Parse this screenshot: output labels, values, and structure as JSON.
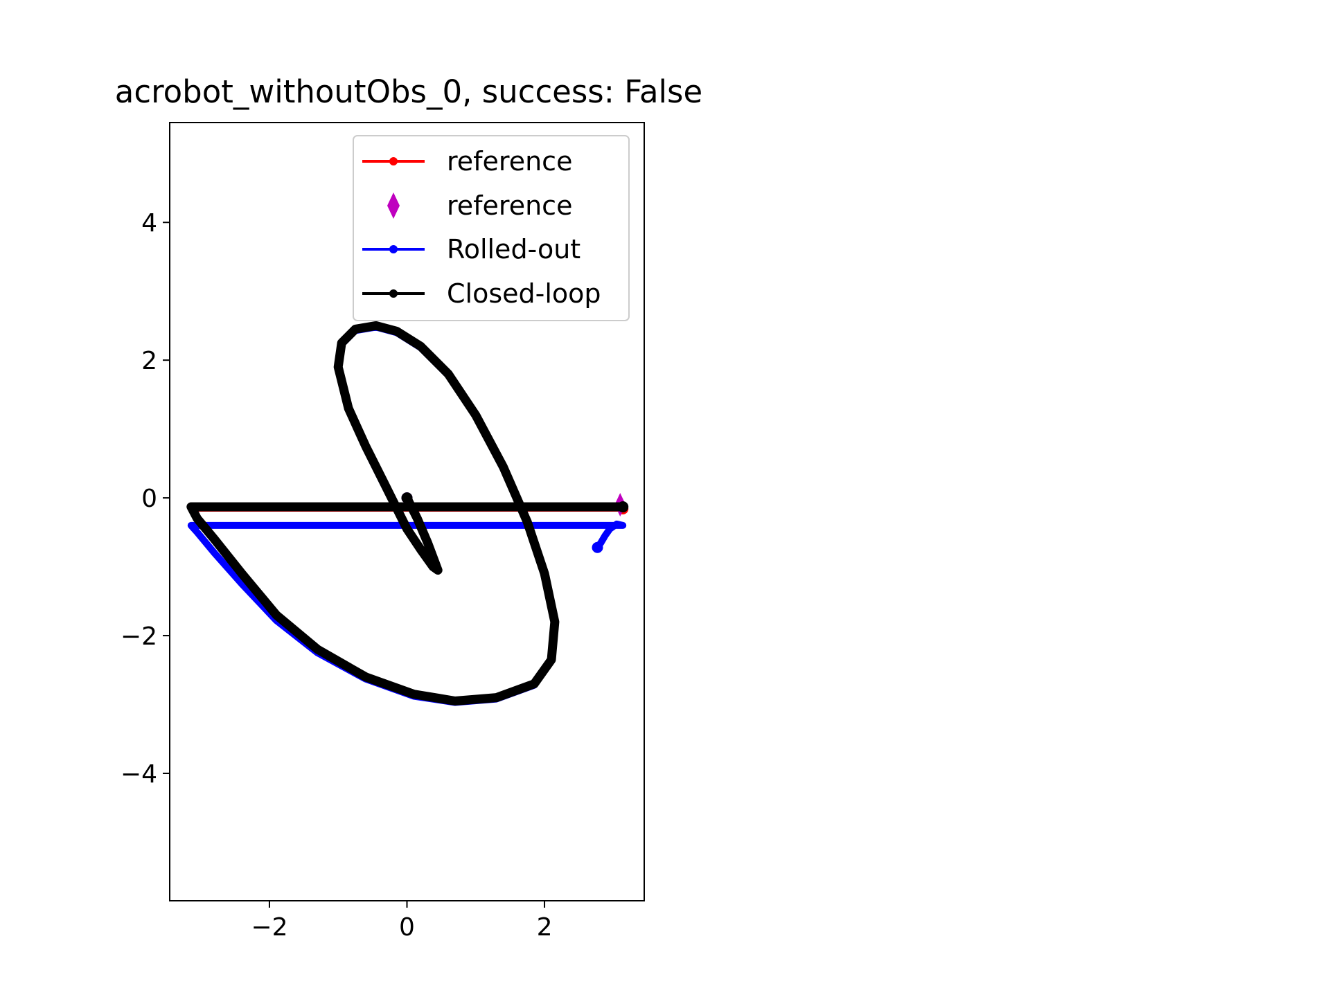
{
  "chart_data": {
    "type": "line",
    "title": "acrobot_withoutObs_0, success: False",
    "xlabel": "",
    "ylabel": "",
    "xlim": [
      -3.45,
      3.45
    ],
    "ylim": [
      -5.85,
      5.45
    ],
    "xticks": [
      -2,
      0,
      2
    ],
    "yticks": [
      -4,
      -2,
      0,
      2,
      4
    ],
    "xtick_labels": [
      "−2",
      "0",
      "2"
    ],
    "ytick_labels": [
      "−4",
      "−2",
      "0",
      "2",
      "4"
    ],
    "grid": false,
    "legend_position": "upper right",
    "series": [
      {
        "name": "reference",
        "kind": "line",
        "color": "#ff0000",
        "points": [
          [
            0.0,
            0.0
          ],
          [
            0.15,
            -0.3
          ],
          [
            0.3,
            -0.65
          ],
          [
            0.45,
            -1.05
          ],
          [
            0.38,
            -1.0
          ],
          [
            0.2,
            -0.75
          ],
          [
            0.0,
            -0.45
          ],
          [
            -0.15,
            -0.15
          ],
          [
            -0.35,
            0.25
          ],
          [
            -0.6,
            0.75
          ],
          [
            -0.85,
            1.3
          ],
          [
            -1.0,
            1.9
          ],
          [
            -0.95,
            2.25
          ],
          [
            -0.75,
            2.45
          ],
          [
            -0.45,
            2.5
          ],
          [
            -0.15,
            2.42
          ],
          [
            0.2,
            2.2
          ],
          [
            0.6,
            1.8
          ],
          [
            1.0,
            1.2
          ],
          [
            1.4,
            0.45
          ],
          [
            1.75,
            -0.35
          ],
          [
            2.0,
            -1.1
          ],
          [
            2.15,
            -1.8
          ],
          [
            2.1,
            -2.35
          ],
          [
            1.85,
            -2.7
          ],
          [
            1.3,
            -2.9
          ],
          [
            0.7,
            -2.95
          ],
          [
            0.1,
            -2.85
          ],
          [
            -0.6,
            -2.6
          ],
          [
            -1.3,
            -2.2
          ],
          [
            -1.9,
            -1.7
          ],
          [
            -2.4,
            -1.1
          ],
          [
            -2.8,
            -0.6
          ],
          [
            -3.05,
            -0.3
          ],
          [
            -3.14,
            -0.16
          ],
          [
            3.14,
            -0.16
          ]
        ]
      },
      {
        "name": "reference",
        "kind": "marker",
        "marker": "diamond",
        "color": "#bf00bf",
        "points": [
          [
            3.1,
            -0.1
          ]
        ]
      },
      {
        "name": "Rolled-out",
        "kind": "line",
        "color": "#0000ff",
        "points": [
          [
            0.0,
            0.0
          ],
          [
            0.15,
            -0.3
          ],
          [
            0.3,
            -0.65
          ],
          [
            0.45,
            -1.05
          ],
          [
            0.38,
            -1.0
          ],
          [
            0.2,
            -0.75
          ],
          [
            0.0,
            -0.45
          ],
          [
            -0.15,
            -0.17
          ],
          [
            -0.35,
            0.22
          ],
          [
            -0.6,
            0.72
          ],
          [
            -0.85,
            1.28
          ],
          [
            -1.0,
            1.88
          ],
          [
            -0.95,
            2.23
          ],
          [
            -0.75,
            2.43
          ],
          [
            -0.45,
            2.48
          ],
          [
            -0.15,
            2.4
          ],
          [
            0.2,
            2.18
          ],
          [
            0.6,
            1.78
          ],
          [
            1.0,
            1.18
          ],
          [
            1.4,
            0.42
          ],
          [
            1.75,
            -0.38
          ],
          [
            2.0,
            -1.12
          ],
          [
            2.15,
            -1.82
          ],
          [
            2.1,
            -2.37
          ],
          [
            1.85,
            -2.72
          ],
          [
            1.3,
            -2.92
          ],
          [
            0.7,
            -2.97
          ],
          [
            0.1,
            -2.88
          ],
          [
            -0.6,
            -2.63
          ],
          [
            -1.3,
            -2.25
          ],
          [
            -1.9,
            -1.78
          ],
          [
            -2.4,
            -1.25
          ],
          [
            -2.8,
            -0.8
          ],
          [
            -3.05,
            -0.5
          ],
          [
            -3.14,
            -0.4
          ],
          [
            3.14,
            -0.4
          ],
          [
            3.05,
            -0.38
          ],
          [
            2.95,
            -0.45
          ],
          [
            2.88,
            -0.55
          ],
          [
            2.82,
            -0.65
          ],
          [
            2.77,
            -0.72
          ]
        ]
      },
      {
        "name": "Closed-loop",
        "kind": "line",
        "color": "#000000",
        "points": [
          [
            0.0,
            0.0
          ],
          [
            0.15,
            -0.3
          ],
          [
            0.3,
            -0.65
          ],
          [
            0.45,
            -1.05
          ],
          [
            0.38,
            -1.0
          ],
          [
            0.2,
            -0.75
          ],
          [
            0.0,
            -0.45
          ],
          [
            -0.15,
            -0.15
          ],
          [
            -0.35,
            0.25
          ],
          [
            -0.6,
            0.75
          ],
          [
            -0.85,
            1.3
          ],
          [
            -1.0,
            1.9
          ],
          [
            -0.95,
            2.25
          ],
          [
            -0.75,
            2.45
          ],
          [
            -0.45,
            2.5
          ],
          [
            -0.15,
            2.42
          ],
          [
            0.2,
            2.2
          ],
          [
            0.6,
            1.8
          ],
          [
            1.0,
            1.2
          ],
          [
            1.4,
            0.45
          ],
          [
            1.75,
            -0.35
          ],
          [
            2.0,
            -1.1
          ],
          [
            2.15,
            -1.8
          ],
          [
            2.1,
            -2.35
          ],
          [
            1.85,
            -2.7
          ],
          [
            1.3,
            -2.9
          ],
          [
            0.7,
            -2.95
          ],
          [
            0.1,
            -2.85
          ],
          [
            -0.6,
            -2.6
          ],
          [
            -1.3,
            -2.2
          ],
          [
            -1.9,
            -1.7
          ],
          [
            -2.4,
            -1.1
          ],
          [
            -2.8,
            -0.6
          ],
          [
            -3.05,
            -0.3
          ],
          [
            -3.14,
            -0.13
          ],
          [
            3.14,
            -0.13
          ]
        ]
      }
    ]
  }
}
